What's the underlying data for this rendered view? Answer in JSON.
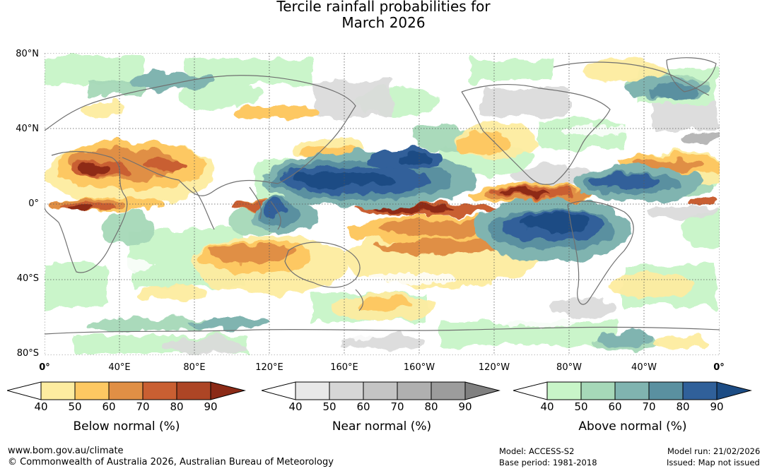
{
  "title": {
    "line1": "Tercile rainfall probabilities for",
    "line2": "March 2026"
  },
  "map": {
    "lat_labels": [
      "80°N",
      "40°N",
      "0°",
      "40°S",
      "80°S"
    ],
    "lon_labels": [
      "0°",
      "40°E",
      "80°E",
      "120°E",
      "160°E",
      "160°W",
      "120°W",
      "80°W",
      "40°W",
      "0°"
    ],
    "colors": {
      "background": "#ffffff",
      "coastline": "#707070",
      "grid": "#555555"
    }
  },
  "legends": [
    {
      "title": "Below normal (%)",
      "ticks": [
        "40",
        "50",
        "60",
        "70",
        "80",
        "90"
      ],
      "colors": [
        "#ffffff",
        "#fdeca0",
        "#fdc862",
        "#e08f45",
        "#c95f32",
        "#ad4525",
        "#8b2a16"
      ]
    },
    {
      "title": "Near normal (%)",
      "ticks": [
        "40",
        "50",
        "60",
        "70",
        "80",
        "90"
      ],
      "colors": [
        "#ffffff",
        "#e8e8e8",
        "#d6d6d6",
        "#c4c4c4",
        "#b0b0b0",
        "#9c9c9c",
        "#808080"
      ]
    },
    {
      "title": "Above normal (%)",
      "ticks": [
        "40",
        "50",
        "60",
        "70",
        "80",
        "90"
      ],
      "colors": [
        "#ffffff",
        "#c8f5c8",
        "#a6d8b8",
        "#80b4b0",
        "#5a90a0",
        "#30609a",
        "#1c4c84"
      ]
    }
  ],
  "footer": {
    "website": "www.bom.gov.au/climate",
    "copyright": "© Commonwealth of Australia 2026, Australian Bureau of Meteorology",
    "model": "Model: ACCESS-S2",
    "base_period": "Base period: 1981-2018",
    "model_run": "Model run: 21/02/2026",
    "issued": "Issued: Map not issued"
  }
}
